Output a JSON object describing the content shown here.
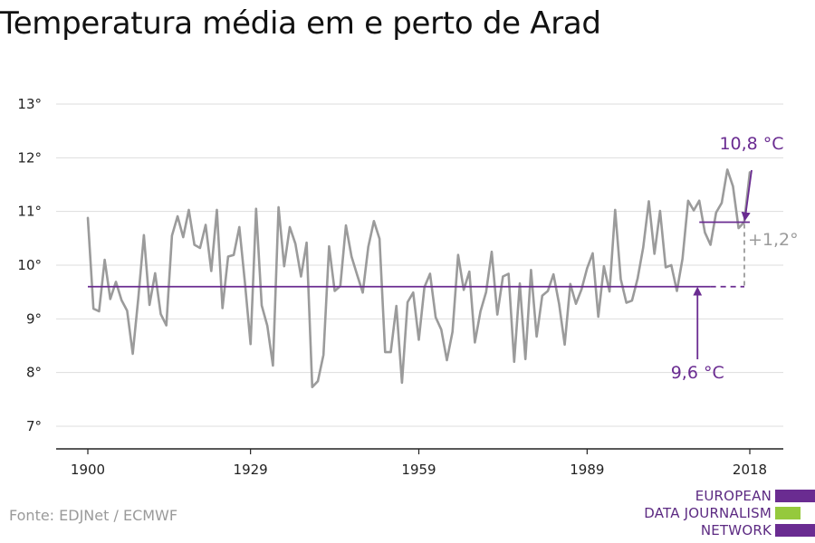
{
  "title": "Temperatura média em e perto de Arad",
  "source": "Fonte: EDJNet / ECMWF",
  "logo": {
    "lines": [
      "EUROPEAN",
      "DATA JOURNALISM",
      "NETWORK"
    ],
    "colors": [
      "#6a2c91",
      "#95c93d",
      "#6a2c91"
    ]
  },
  "colors": {
    "series": "#9b9b9b",
    "accent": "#6a2c91",
    "grid": "#dddddd",
    "axis": "#222222",
    "delta": "#9b9b9b"
  },
  "chart_data": {
    "type": "line",
    "title": "Temperatura média em e perto de Arad",
    "xlabel": "",
    "ylabel": "",
    "xlim": [
      1900,
      2018
    ],
    "ylim": [
      7,
      13
    ],
    "x_ticks": [
      1900,
      1929,
      1959,
      1989,
      2018
    ],
    "x_tick_labels": [
      "1900",
      "1929",
      "1959",
      "1989",
      "2018"
    ],
    "y_ticks": [
      7,
      8,
      9,
      10,
      11,
      12,
      13
    ],
    "y_tick_labels": [
      "7°",
      "8°",
      "9°",
      "10°",
      "11°",
      "12°",
      "13°"
    ],
    "grid": true,
    "series": [
      {
        "x": [
          1900,
          1901,
          1902,
          1903,
          1904,
          1905,
          1906,
          1907,
          1908,
          1909,
          1910,
          1911,
          1912,
          1913,
          1914,
          1915,
          1916,
          1917,
          1918,
          1919,
          1920,
          1921,
          1922,
          1923,
          1924,
          1925,
          1926,
          1927,
          1928,
          1929,
          1930,
          1931,
          1932,
          1933,
          1934,
          1935,
          1936,
          1937,
          1938,
          1939,
          1940,
          1941,
          1942,
          1943,
          1944,
          1945,
          1946,
          1947,
          1948,
          1949,
          1950,
          1951,
          1952,
          1953,
          1954,
          1955,
          1956,
          1957,
          1958,
          1959,
          1960,
          1961,
          1962,
          1963,
          1964,
          1965,
          1966,
          1967,
          1968,
          1969,
          1970,
          1971,
          1972,
          1973,
          1974,
          1975,
          1976,
          1977,
          1978,
          1979,
          1980,
          1981,
          1982,
          1983,
          1984,
          1985,
          1986,
          1987,
          1988,
          1989,
          1990,
          1991,
          1992,
          1993,
          1994,
          1995,
          1996,
          1997,
          1998,
          1999,
          2000,
          2001,
          2002,
          2003,
          2004,
          2005,
          2006,
          2007,
          2008,
          2009,
          2010,
          2011,
          2012,
          2013,
          2014,
          2015,
          2016,
          2017,
          2018
        ],
        "values": [
          10.88,
          9.19,
          9.14,
          10.1,
          9.37,
          9.69,
          9.35,
          9.15,
          8.35,
          9.4,
          10.56,
          9.26,
          9.85,
          9.09,
          8.88,
          10.55,
          10.91,
          10.52,
          11.03,
          10.38,
          10.32,
          10.75,
          9.89,
          11.03,
          9.2,
          10.16,
          10.19,
          10.71,
          9.67,
          8.53,
          11.05,
          9.25,
          8.87,
          8.13,
          11.08,
          9.98,
          10.71,
          10.4,
          9.79,
          10.42,
          7.73,
          7.84,
          8.33,
          10.35,
          9.52,
          9.61,
          10.74,
          10.16,
          9.82,
          9.49,
          10.34,
          10.82,
          10.49,
          8.38,
          8.38,
          9.24,
          7.81,
          9.31,
          9.49,
          8.61,
          9.59,
          9.84,
          9.03,
          8.8,
          8.23,
          8.76,
          10.19,
          9.54,
          9.88,
          8.56,
          9.14,
          9.5,
          10.25,
          9.08,
          9.79,
          9.84,
          8.2,
          9.66,
          8.25,
          9.91,
          8.67,
          9.43,
          9.52,
          9.83,
          9.28,
          8.52,
          9.65,
          9.28,
          9.55,
          9.94,
          10.22,
          9.04,
          9.98,
          9.51,
          11.03,
          9.74,
          9.3,
          9.34,
          9.75,
          10.33,
          11.19,
          10.21,
          11.01,
          9.96,
          10.0,
          9.52,
          10.12,
          11.2,
          11.02,
          11.2,
          10.61,
          10.38,
          10.98,
          11.16,
          11.78,
          11.47,
          10.69,
          10.8,
          11.73
        ]
      }
    ],
    "averages": [
      {
        "label": "9,6 °C",
        "value": 9.6,
        "from": 1900,
        "to": 2018,
        "solid_to": 2011
      },
      {
        "label": "10,8 °C",
        "value": 10.8,
        "from": 2009,
        "to": 2018
      }
    ],
    "delta_label": "+1,2°"
  }
}
